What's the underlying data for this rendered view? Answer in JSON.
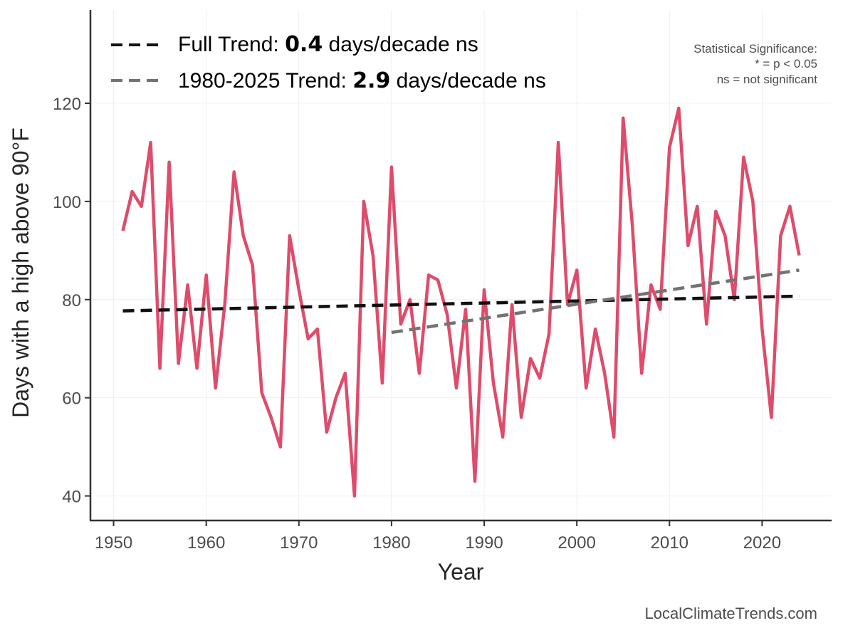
{
  "chart_data": {
    "type": "line",
    "xlabel": "Year",
    "ylabel": "Days with a high above 90°F",
    "xlim": [
      1947.5,
      2027.5
    ],
    "ylim": [
      35,
      139
    ],
    "x_ticks": [
      1950,
      1960,
      1970,
      1980,
      1990,
      2000,
      2010,
      2020
    ],
    "y_ticks": [
      40,
      60,
      80,
      100,
      120
    ],
    "grid": true,
    "series": [
      {
        "name": "Days with a high above 90°F",
        "color": "#de4c6b",
        "x": [
          1951,
          1952,
          1953,
          1954,
          1955,
          1956,
          1957,
          1958,
          1959,
          1960,
          1961,
          1962,
          1963,
          1964,
          1965,
          1966,
          1967,
          1968,
          1969,
          1970,
          1971,
          1972,
          1973,
          1974,
          1975,
          1976,
          1977,
          1978,
          1979,
          1980,
          1981,
          1982,
          1983,
          1984,
          1985,
          1986,
          1987,
          1988,
          1989,
          1990,
          1991,
          1992,
          1993,
          1994,
          1995,
          1996,
          1997,
          1998,
          1999,
          2000,
          2001,
          2002,
          2003,
          2004,
          2005,
          2006,
          2007,
          2008,
          2009,
          2010,
          2011,
          2012,
          2013,
          2014,
          2015,
          2016,
          2017,
          2018,
          2019,
          2020,
          2021,
          2022,
          2023,
          2024
        ],
        "values": [
          94,
          102,
          99,
          112,
          66,
          108,
          67,
          83,
          66,
          85,
          62,
          79,
          106,
          93,
          87,
          61,
          56,
          50,
          93,
          82,
          72,
          74,
          53,
          60,
          65,
          40,
          100,
          89,
          63,
          107,
          75,
          80,
          65,
          85,
          84,
          77,
          62,
          78,
          43,
          82,
          63,
          52,
          79,
          56,
          68,
          64,
          73,
          112,
          79,
          86,
          62,
          74,
          65,
          52,
          117,
          95,
          65,
          83,
          78,
          111,
          119,
          91,
          99,
          75,
          98,
          93,
          80,
          109,
          100,
          74,
          56,
          93,
          99,
          89
        ]
      }
    ],
    "trends": [
      {
        "name": "Full Trend",
        "color": "#111111",
        "x": [
          1951,
          2024
        ],
        "y": [
          77.7,
          80.7
        ],
        "legend_prefix": "Full Trend: ",
        "legend_value": "0.4",
        "legend_suffix": " days/decade ns"
      },
      {
        "name": "1980-2025 Trend",
        "color": "#737373",
        "x": [
          1980,
          2024
        ],
        "y": [
          73.3,
          86.0
        ],
        "legend_prefix": "1980-2025 Trend: ",
        "legend_value": "2.9",
        "legend_suffix": " days/decade ns"
      }
    ],
    "significance_note": {
      "line1": "Statistical Significance:",
      "line2": "* = p < 0.05",
      "line3": "ns = not significant"
    },
    "credit": "LocalClimateTrends.com"
  }
}
